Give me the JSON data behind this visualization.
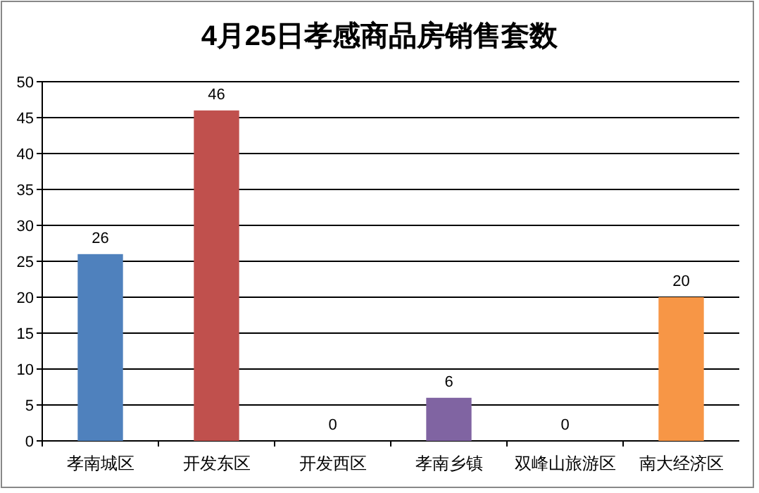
{
  "chart_data": {
    "type": "bar",
    "title": "4月25日孝感商品房销售套数",
    "categories": [
      "孝南城区",
      "开发东区",
      "开发西区",
      "孝南乡镇",
      "双峰山旅游区",
      "南大经济区"
    ],
    "values": [
      26,
      46,
      0,
      6,
      0,
      20
    ],
    "colors": [
      "#4f81bd",
      "#c0504d",
      "#9bbb59",
      "#8064a2",
      "#4bacc6",
      "#f79646"
    ],
    "ylim": [
      0,
      50
    ],
    "yticks": [
      0,
      5,
      10,
      15,
      20,
      25,
      30,
      35,
      40,
      45,
      50
    ],
    "grid": "y",
    "data_labels": true
  }
}
